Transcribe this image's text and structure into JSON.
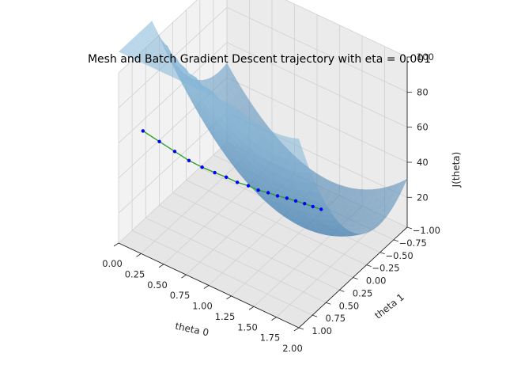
{
  "chart_data": {
    "type": "surface3d",
    "title": "Mesh and Batch Gradient Descent trajectory with eta = 0.001",
    "xlabel": "theta 0",
    "ylabel": "theta 1",
    "zlabel": "J(theta)",
    "xlim": [
      0,
      2
    ],
    "ylim": [
      -1,
      1
    ],
    "zlim": [
      3,
      100
    ],
    "xticks": [
      "0.00",
      "0.25",
      "0.50",
      "0.75",
      "1.00",
      "1.25",
      "1.50",
      "1.75",
      "2.00"
    ],
    "yticks": [
      "−1.00",
      "−0.75",
      "−0.50",
      "−0.25",
      "0.00",
      "0.25",
      "0.50",
      "0.75",
      "1.00"
    ],
    "zticks": [
      "20",
      "40",
      "60",
      "80",
      "100"
    ],
    "grid": true,
    "surface_color": "#4a90c8",
    "trajectory_line_color": "#2ca02c",
    "trajectory_point_color": "#0000ff",
    "trajectory": {
      "theta0": [
        0.0,
        0.08,
        0.16,
        0.24,
        0.32,
        0.4,
        0.48,
        0.56,
        0.64,
        0.72,
        0.8,
        0.88,
        0.96,
        1.04,
        1.12,
        1.2,
        1.28
      ],
      "theta1": [
        0.55,
        0.38,
        0.23,
        0.1,
        -0.01,
        -0.11,
        -0.19,
        -0.26,
        -0.33,
        -0.38,
        -0.43,
        -0.47,
        -0.51,
        -0.54,
        -0.57,
        -0.59,
        -0.61
      ],
      "J": [
        54,
        45,
        37,
        30,
        25,
        21,
        18,
        15,
        13,
        11,
        10,
        9,
        8.5,
        8,
        7.5,
        7.2,
        7
      ]
    }
  }
}
